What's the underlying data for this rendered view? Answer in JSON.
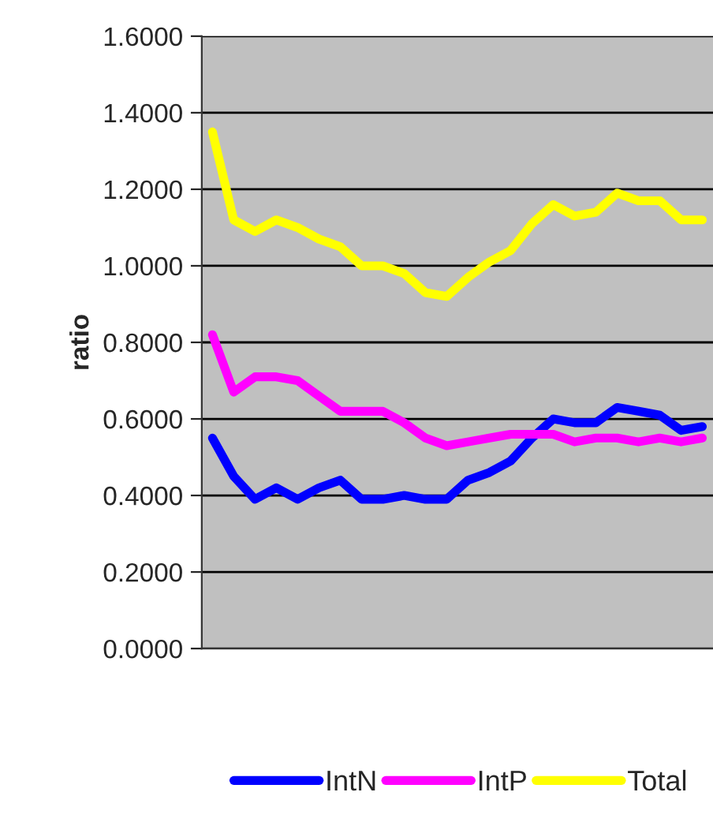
{
  "chart_data": {
    "type": "line",
    "ylabel": "ratio",
    "categories": [
      null,
      null,
      null,
      null,
      null,
      null,
      null,
      null,
      null,
      null,
      null,
      null,
      null,
      null,
      null,
      null,
      null,
      null,
      null,
      null,
      null,
      null,
      null,
      null
    ],
    "series": [
      {
        "name": "IntN",
        "color": "#0000ff",
        "values": [
          0.55,
          0.45,
          0.39,
          0.42,
          0.39,
          0.42,
          0.44,
          0.39,
          0.39,
          0.4,
          0.39,
          0.39,
          0.44,
          0.46,
          0.49,
          0.55,
          0.6,
          0.59,
          0.59,
          0.63,
          0.62,
          0.61,
          0.57,
          0.58
        ]
      },
      {
        "name": "IntP",
        "color": "#ff00ff",
        "values": [
          0.82,
          0.67,
          0.71,
          0.71,
          0.7,
          0.66,
          0.62,
          0.62,
          0.62,
          0.59,
          0.55,
          0.53,
          0.54,
          0.55,
          0.56,
          0.56,
          0.56,
          0.54,
          0.55,
          0.55,
          0.54,
          0.55,
          0.54,
          0.55
        ]
      },
      {
        "name": "Total",
        "color": "#ffff00",
        "values": [
          1.35,
          1.12,
          1.09,
          1.12,
          1.1,
          1.07,
          1.05,
          1.0,
          1.0,
          0.98,
          0.93,
          0.92,
          0.97,
          1.01,
          1.04,
          1.11,
          1.16,
          1.13,
          1.14,
          1.19,
          1.17,
          1.17,
          1.12,
          1.12
        ]
      }
    ],
    "ylim": [
      0,
      1.6
    ],
    "yticks": [
      {
        "value": 0,
        "label": "0.0000"
      },
      {
        "value": 0.2,
        "label": "0.2000"
      },
      {
        "value": 0.4,
        "label": "0.4000"
      },
      {
        "value": 0.6,
        "label": "0.6000"
      },
      {
        "value": 0.8,
        "label": "0.8000"
      },
      {
        "value": 1.0,
        "label": "1.0000"
      },
      {
        "value": 1.2,
        "label": "1.2000"
      },
      {
        "value": 1.4,
        "label": "1.4000"
      },
      {
        "value": 1.6,
        "label": "1.6000"
      }
    ],
    "grid": "y",
    "legend": "bottom",
    "marker": "none",
    "line_style": "solid"
  }
}
